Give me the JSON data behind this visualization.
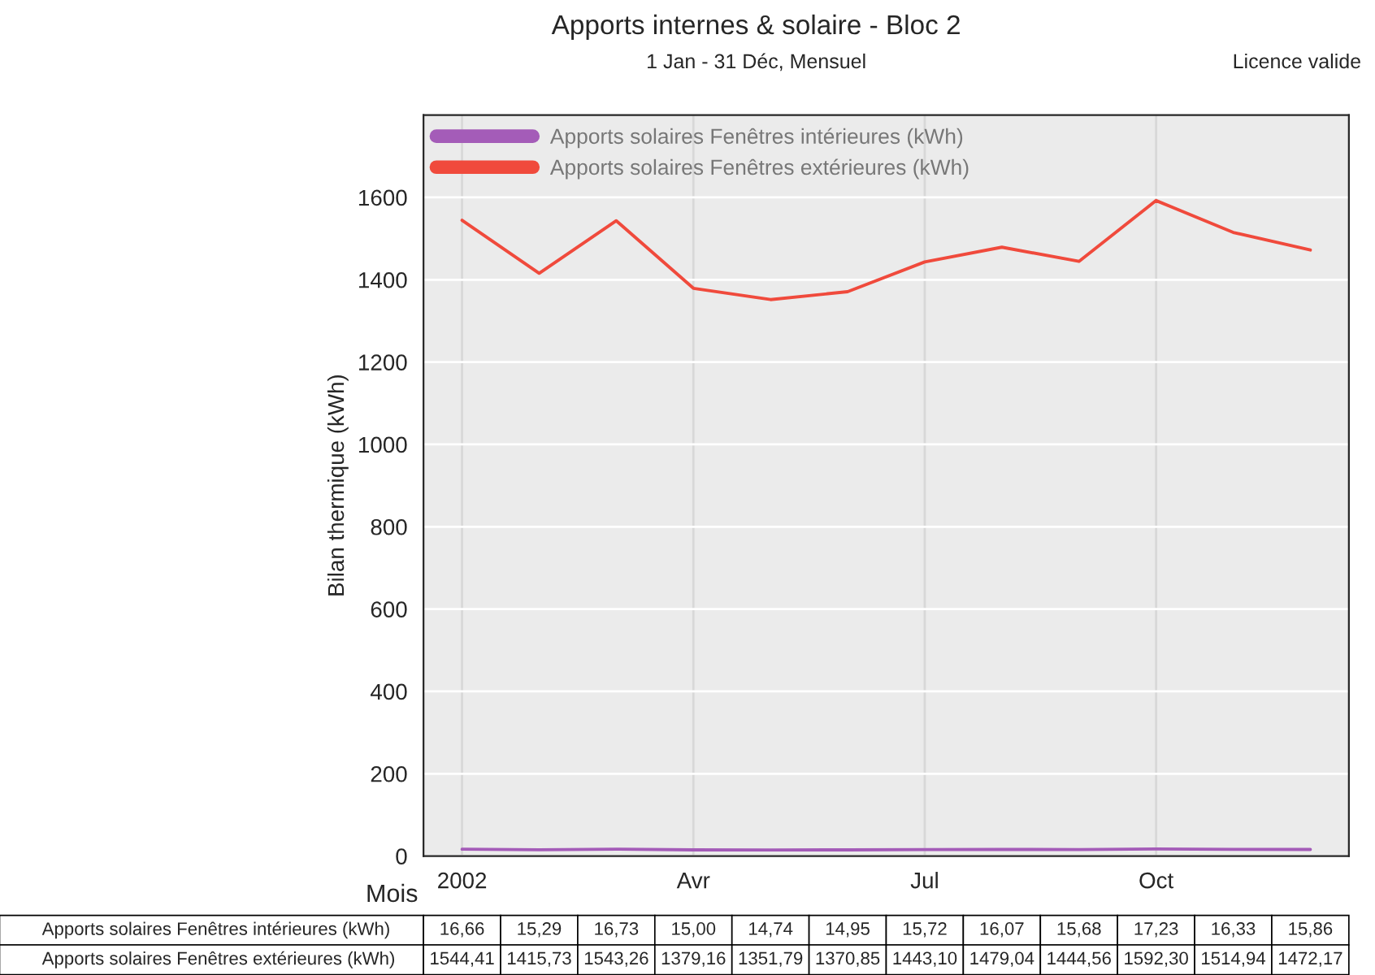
{
  "chart_data": {
    "type": "line",
    "title": "Apports internes & solaire - Bloc 2",
    "subtitle": "1 Jan - 31 Déc, Mensuel",
    "xlabel": "Mois",
    "ylabel": "Bilan thermique (kWh)",
    "annotations": [
      "Licence valide"
    ],
    "categories": [
      "2002",
      null,
      null,
      "Avr",
      null,
      null,
      "Jul",
      null,
      null,
      "Oct",
      null,
      null
    ],
    "series": [
      {
        "name": "Apports solaires Fenêtres intérieures (kWh)",
        "color": "#a45cb8",
        "values": [
          16.66,
          15.29,
          16.73,
          15.0,
          14.74,
          14.95,
          15.72,
          16.07,
          15.68,
          17.23,
          16.33,
          15.86
        ],
        "value_labels": [
          "16,66",
          "15,29",
          "16,73",
          "15,00",
          "14,74",
          "14,95",
          "15,72",
          "16,07",
          "15,68",
          "17,23",
          "16,33",
          "15,86"
        ]
      },
      {
        "name": "Apports solaires Fenêtres extérieures (kWh)",
        "color": "#f04a3c",
        "values": [
          1544.41,
          1415.73,
          1543.26,
          1379.16,
          1351.79,
          1370.85,
          1443.1,
          1479.04,
          1444.56,
          1592.3,
          1514.94,
          1472.17
        ],
        "value_labels": [
          "1544,41",
          "1415,73",
          "1543,26",
          "1379,16",
          "1351,79",
          "1370,85",
          "1443,10",
          "1479,04",
          "1444,56",
          "1592,30",
          "1514,94",
          "1472,17"
        ]
      }
    ],
    "ylim": [
      0,
      1800
    ],
    "yticks": [
      0,
      200,
      400,
      600,
      800,
      1000,
      1200,
      1400,
      1600
    ],
    "grid": true,
    "legend": "top left",
    "marker": "none",
    "line_style": "solid"
  }
}
